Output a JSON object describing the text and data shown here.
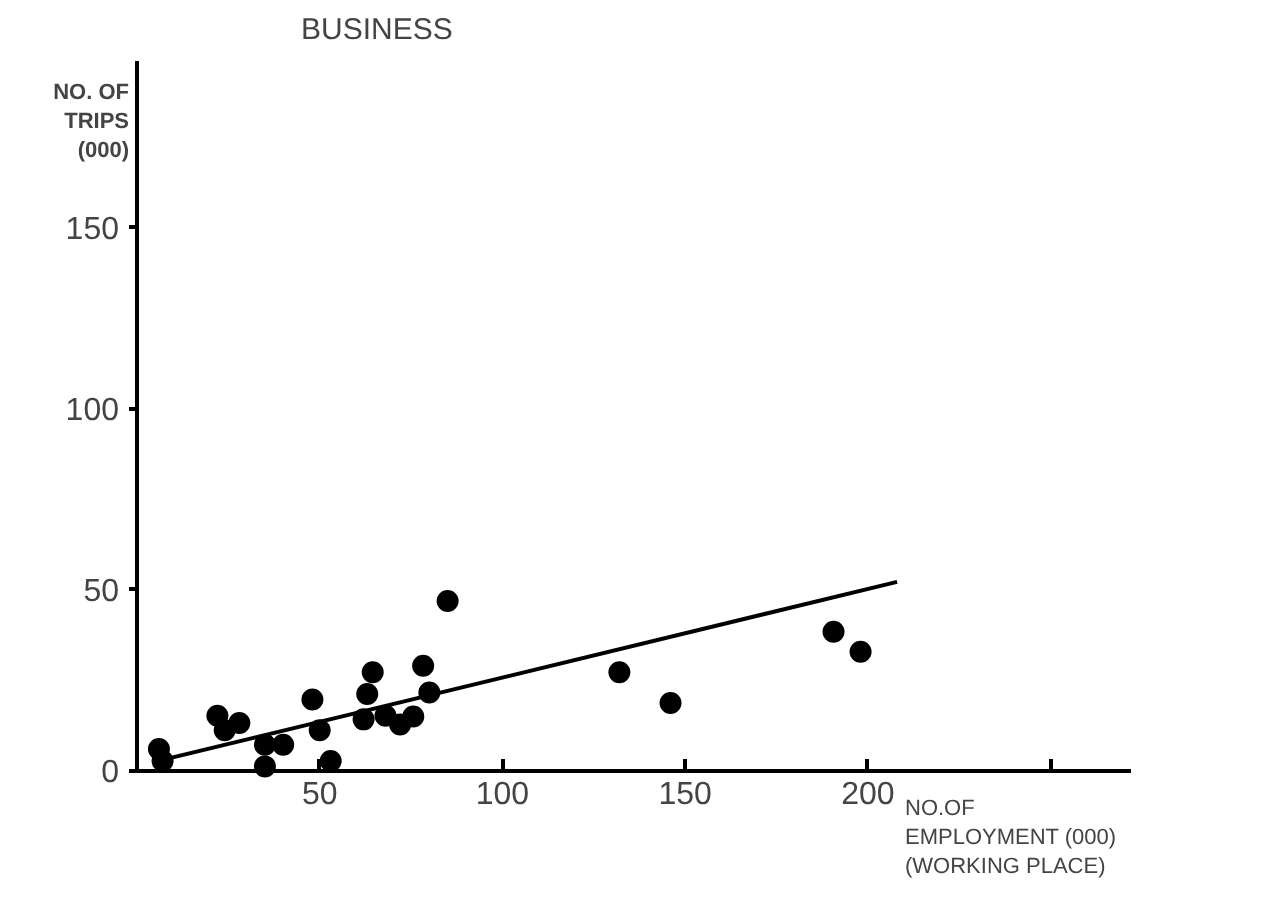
{
  "chart_data": {
    "type": "scatter",
    "title": "BUSINESS",
    "xlabel": "NO.OF\nEMPLOYMENT (000)\n(WORKING PLACE)",
    "ylabel": "NO. OF\nTRIPS\n(000)",
    "xlim": [
      0,
      272
    ],
    "ylim": [
      0,
      196
    ],
    "xticks": [
      50,
      100,
      150,
      200,
      {
        "value": 250,
        "label": null
      }
    ],
    "yticks": [
      0,
      50,
      100,
      150
    ],
    "grid": false,
    "series": [
      {
        "color": "#000000",
        "marker": "circle",
        "x": [
          6,
          7,
          22,
          24,
          28,
          35,
          35,
          40,
          48,
          50,
          53,
          62,
          63,
          64.5,
          68,
          72,
          75.6,
          78.3,
          80,
          85,
          132,
          146,
          190.6,
          198
        ],
        "values": [
          5.8,
          2.5,
          15,
          11,
          13,
          7,
          1,
          7,
          19.5,
          11,
          2.5,
          14,
          21,
          27,
          15,
          12.6,
          14.8,
          28.8,
          21.4,
          46.7,
          27,
          18.5,
          38.2,
          32.7
        ]
      },
      {
        "type": "line",
        "color": "#000000",
        "x": [
          5,
          208
        ],
        "values": [
          2.3,
          52
        ]
      }
    ]
  }
}
